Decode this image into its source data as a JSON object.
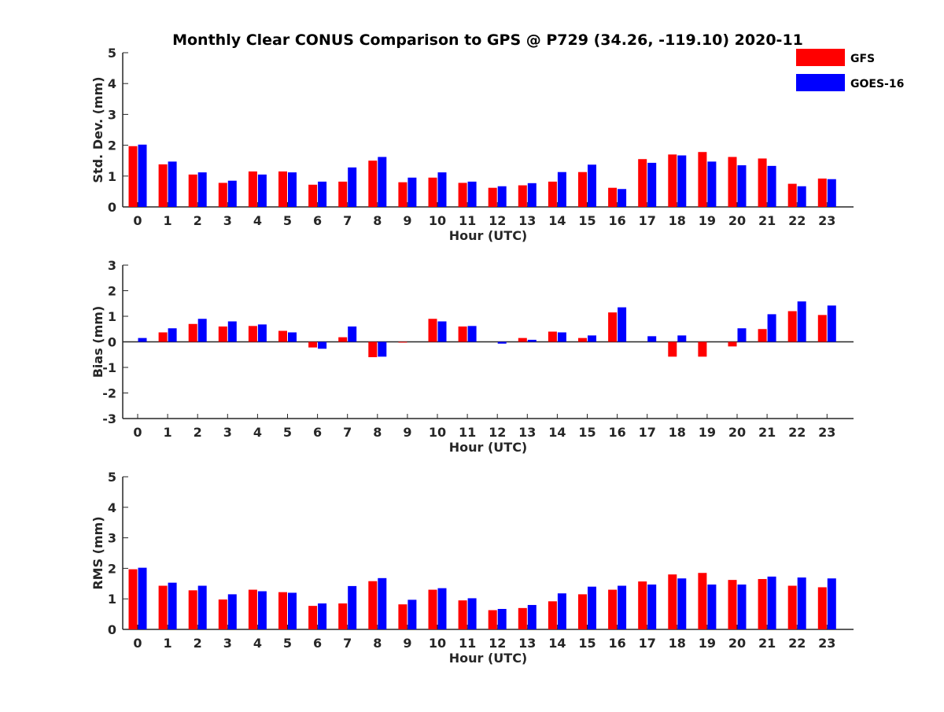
{
  "title": "Monthly Clear CONUS Comparison to GPS @ P729 (34.26, -119.10) 2020-11",
  "legend": {
    "placement": "top-right",
    "entries": [
      {
        "name": "GFS",
        "color": "#ff0000"
      },
      {
        "name": "GOES-16",
        "color": "#0000ff"
      }
    ]
  },
  "chart_data": [
    {
      "type": "bar",
      "xlabel": "Hour (UTC)",
      "ylabel": "Std. Dev. (mm)",
      "ylim": [
        0,
        5
      ],
      "yticks": [
        0,
        1,
        2,
        3,
        4,
        5
      ],
      "categories": [
        "0",
        "1",
        "2",
        "3",
        "4",
        "5",
        "6",
        "7",
        "8",
        "9",
        "10",
        "11",
        "12",
        "13",
        "14",
        "15",
        "16",
        "17",
        "18",
        "19",
        "20",
        "21",
        "22",
        "23"
      ],
      "series": [
        {
          "name": "GFS",
          "color": "#ff0000",
          "values": [
            1.97,
            1.38,
            1.05,
            0.78,
            1.15,
            1.15,
            0.72,
            0.82,
            1.5,
            0.8,
            0.95,
            0.78,
            0.62,
            0.7,
            0.82,
            1.13,
            0.62,
            1.55,
            1.7,
            1.78,
            1.62,
            1.57,
            0.75,
            0.92
          ]
        },
        {
          "name": "GOES-16",
          "color": "#0000ff",
          "values": [
            2.02,
            1.47,
            1.12,
            0.85,
            1.05,
            1.12,
            0.82,
            1.28,
            1.62,
            0.95,
            1.12,
            0.82,
            0.67,
            0.77,
            1.13,
            1.37,
            0.58,
            1.43,
            1.67,
            1.47,
            1.35,
            1.33,
            0.67,
            0.9
          ]
        }
      ]
    },
    {
      "type": "bar",
      "xlabel": "Hour (UTC)",
      "ylabel": "Bias (mm)",
      "ylim": [
        -3,
        3
      ],
      "yticks": [
        -3,
        -2,
        -1,
        0,
        1,
        2,
        3
      ],
      "categories": [
        "0",
        "1",
        "2",
        "3",
        "4",
        "5",
        "6",
        "7",
        "8",
        "9",
        "10",
        "11",
        "12",
        "13",
        "14",
        "15",
        "16",
        "17",
        "18",
        "19",
        "20",
        "21",
        "22",
        "23"
      ],
      "series": [
        {
          "name": "GFS",
          "color": "#ff0000",
          "values": [
            0.0,
            0.37,
            0.7,
            0.6,
            0.62,
            0.43,
            -0.22,
            0.18,
            -0.6,
            -0.03,
            0.9,
            0.6,
            0.0,
            0.15,
            0.4,
            0.15,
            1.15,
            0.0,
            -0.58,
            -0.58,
            -0.18,
            0.5,
            1.2,
            1.05
          ]
        },
        {
          "name": "GOES-16",
          "color": "#0000ff",
          "values": [
            0.15,
            0.53,
            0.9,
            0.8,
            0.68,
            0.37,
            -0.27,
            0.6,
            -0.58,
            0.0,
            0.8,
            0.62,
            -0.07,
            0.08,
            0.37,
            0.25,
            1.35,
            0.22,
            0.25,
            0.0,
            0.53,
            1.08,
            1.58,
            1.42
          ]
        }
      ]
    },
    {
      "type": "bar",
      "xlabel": "Hour (UTC)",
      "ylabel": "RMS (mm)",
      "ylim": [
        0,
        5
      ],
      "yticks": [
        0,
        1,
        2,
        3,
        4,
        5
      ],
      "categories": [
        "0",
        "1",
        "2",
        "3",
        "4",
        "5",
        "6",
        "7",
        "8",
        "9",
        "10",
        "11",
        "12",
        "13",
        "14",
        "15",
        "16",
        "17",
        "18",
        "19",
        "20",
        "21",
        "22",
        "23"
      ],
      "series": [
        {
          "name": "GFS",
          "color": "#ff0000",
          "values": [
            1.97,
            1.43,
            1.28,
            0.98,
            1.3,
            1.22,
            0.77,
            0.85,
            1.58,
            0.82,
            1.3,
            0.95,
            0.63,
            0.7,
            0.92,
            1.15,
            1.3,
            1.57,
            1.8,
            1.85,
            1.62,
            1.65,
            1.43,
            1.38
          ]
        },
        {
          "name": "GOES-16",
          "color": "#0000ff",
          "values": [
            2.02,
            1.53,
            1.43,
            1.15,
            1.25,
            1.2,
            0.85,
            1.42,
            1.68,
            0.97,
            1.35,
            1.02,
            0.67,
            0.8,
            1.18,
            1.4,
            1.43,
            1.47,
            1.67,
            1.47,
            1.47,
            1.73,
            1.7,
            1.67
          ]
        }
      ]
    }
  ]
}
